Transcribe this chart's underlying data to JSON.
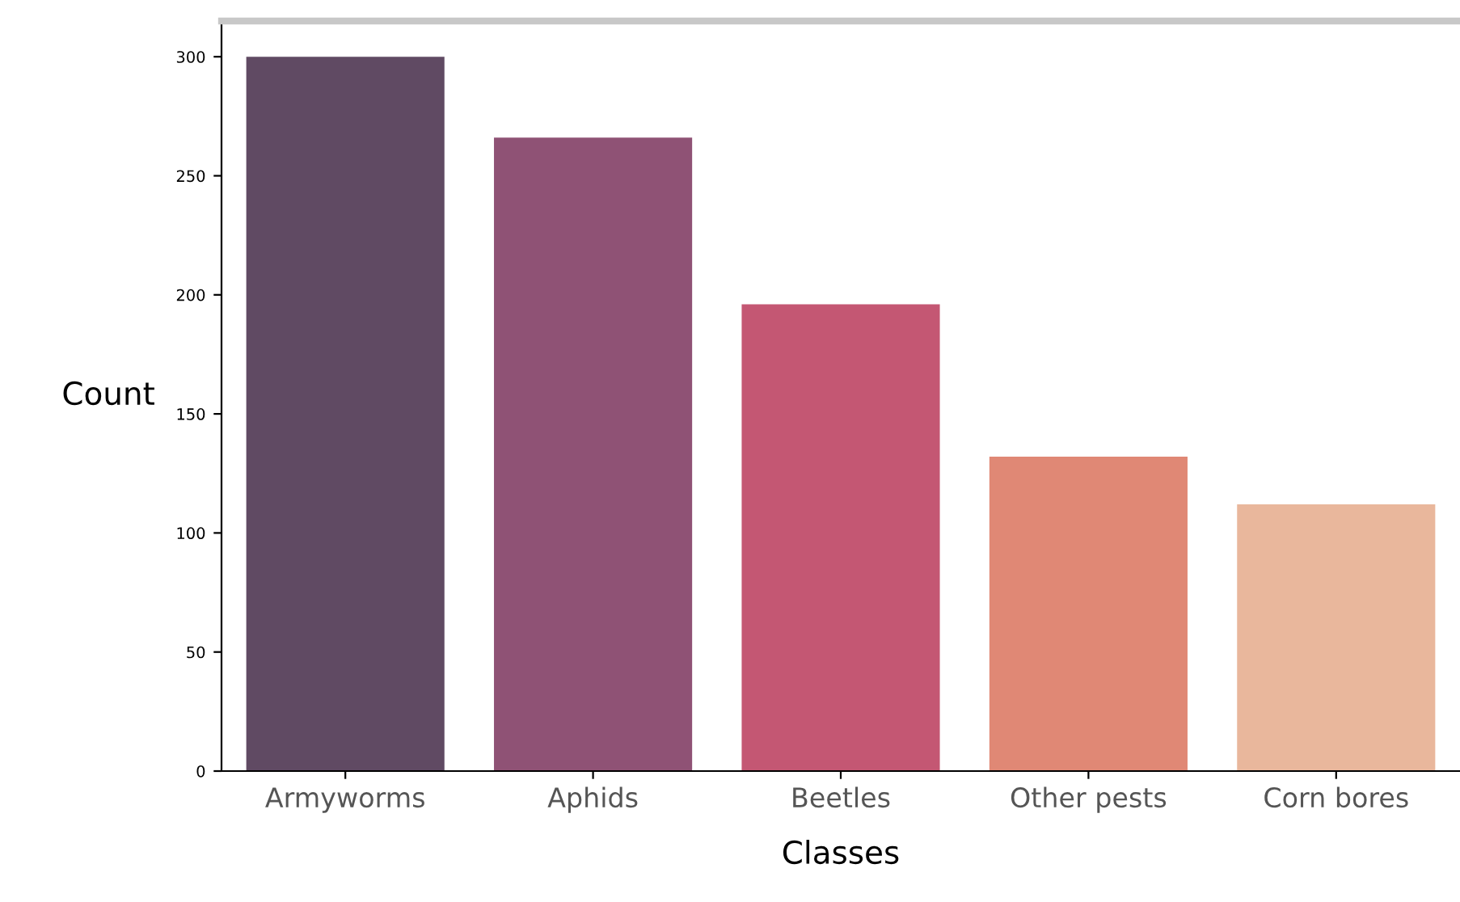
{
  "chart_data": {
    "type": "bar",
    "xlabel": "Classes",
    "ylabel": "Count",
    "categories": [
      "Armyworms",
      "Aphids",
      "Beetles",
      "Other pests",
      "Corn bores"
    ],
    "values": [
      300,
      266,
      196,
      132,
      112
    ],
    "colors": [
      "#604a63",
      "#8f5275",
      "#c45773",
      "#e08875",
      "#e9b79c"
    ],
    "ylim": [
      0,
      315
    ],
    "yticks": [
      0,
      50,
      100,
      150,
      200,
      250,
      300
    ],
    "grid": false
  }
}
